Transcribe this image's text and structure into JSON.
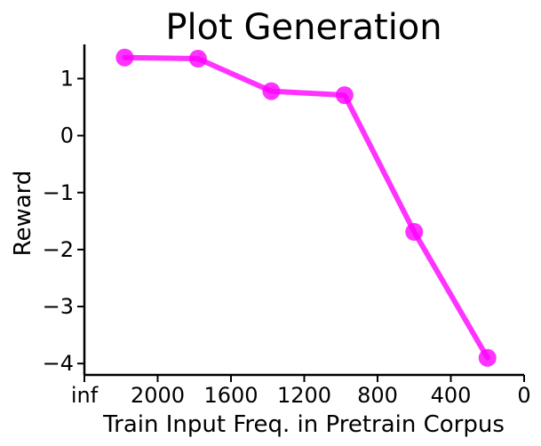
{
  "chart_data": {
    "type": "line",
    "title": "Plot Generation",
    "xlabel": "Train Input Freq. in Pretrain Corpus",
    "ylabel": "Reward",
    "x_ticks": [
      "inf",
      "2000",
      "1600",
      "1200",
      "800",
      "400",
      "0"
    ],
    "y_ticks": [
      "1",
      "0",
      "−1",
      "−2",
      "−3",
      "−4"
    ],
    "xlim": [
      2400,
      0
    ],
    "ylim": [
      -4.2,
      1.6
    ],
    "grid": false,
    "legend": "none",
    "series": [
      {
        "color": "#ff00ff",
        "x": [
          2180,
          1780,
          1380,
          980,
          600,
          200
        ],
        "y": [
          1.37,
          1.35,
          0.78,
          0.71,
          -1.69,
          -3.9
        ]
      }
    ]
  }
}
